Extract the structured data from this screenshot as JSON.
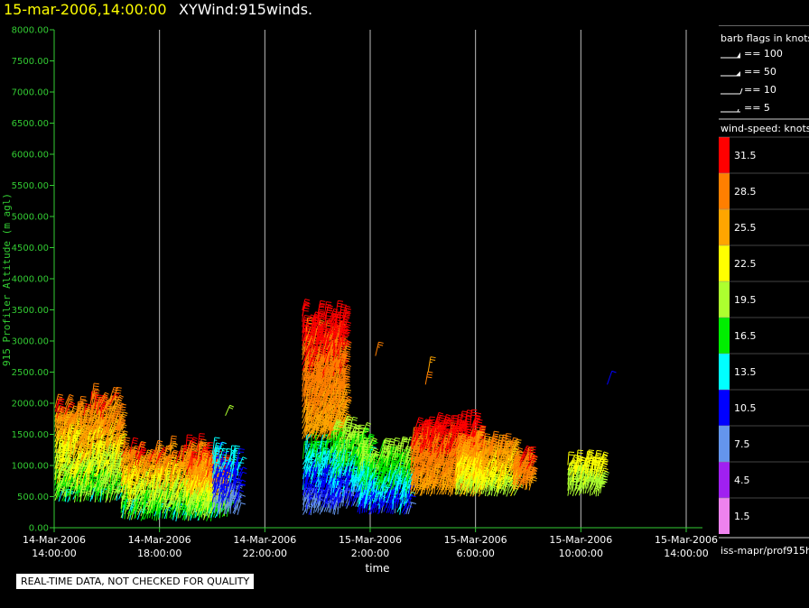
{
  "header": {
    "time": "15-mar-2006,14:00:00",
    "product": "XYWind:915winds."
  },
  "footer": {
    "source": "iss-mapr/prof915h",
    "qc_note": "REAL-TIME DATA, NOT CHECKED FOR QUALITY"
  },
  "legend": {
    "barb_title": "barb flags in knots",
    "barbs": [
      {
        "label": "== 100",
        "icon": "pennant-barb-icon"
      },
      {
        "label": "== 50",
        "icon": "flag-barb-icon"
      },
      {
        "label": "== 10",
        "icon": "full-barb-icon"
      },
      {
        "label": "== 5",
        "icon": "half-barb-icon"
      }
    ],
    "speed_title": "wind-speed: knots",
    "speed_bins": [
      {
        "label": "31.5",
        "color": "#ff0000"
      },
      {
        "label": "28.5",
        "color": "#ff7f00"
      },
      {
        "label": "25.5",
        "color": "#ffa500"
      },
      {
        "label": "22.5",
        "color": "#ffff00"
      },
      {
        "label": "19.5",
        "color": "#adff2f"
      },
      {
        "label": "16.5",
        "color": "#00ee00"
      },
      {
        "label": "13.5",
        "color": "#00ffff"
      },
      {
        "label": "10.5",
        "color": "#0000ff"
      },
      {
        "label": "7.5",
        "color": "#6495ed"
      },
      {
        "label": "4.5",
        "color": "#a020f0"
      },
      {
        "label": "1.5",
        "color": "#ee82ee"
      }
    ]
  },
  "chart_data": {
    "type": "wind-barb-time-height",
    "xlabel": "time",
    "ylabel": "915 Profiler Altitude (m agl)",
    "ylim": [
      0,
      8000
    ],
    "yticks": [
      "0.00",
      "500.00",
      "1000.00",
      "1500.00",
      "2000.00",
      "2500.00",
      "3000.00",
      "3500.00",
      "4000.00",
      "4500.00",
      "5000.00",
      "5500.00",
      "6000.00",
      "6500.00",
      "7000.00",
      "7500.00",
      "8000.00"
    ],
    "xlim_hours_from_start": [
      0,
      24
    ],
    "xticks": [
      {
        "date": "14-Mar-2006",
        "time": "14:00:00"
      },
      {
        "date": "14-Mar-2006",
        "time": "18:00:00"
      },
      {
        "date": "14-Mar-2006",
        "time": "22:00:00"
      },
      {
        "date": "15-Mar-2006",
        "time": "2:00:00"
      },
      {
        "date": "15-Mar-2006",
        "time": "6:00:00"
      },
      {
        "date": "15-Mar-2006",
        "time": "10:00:00"
      },
      {
        "date": "15-Mar-2006",
        "time": "14:00:00"
      }
    ],
    "grid": "vertical lines at each x tick",
    "clusters": [
      {
        "t_start": 0.0,
        "t_end": 2.5,
        "alt_min": 400,
        "alt_max": 2150,
        "speed_low": 14,
        "speed_high": 30
      },
      {
        "t_start": 2.5,
        "t_end": 6.0,
        "alt_min": 100,
        "alt_max": 1300,
        "speed_low": 12,
        "speed_high": 30
      },
      {
        "t_start": 5.0,
        "t_end": 6.6,
        "alt_min": 150,
        "alt_max": 1100,
        "speed_low": 14,
        "speed_high": 31
      },
      {
        "t_start": 6.0,
        "t_end": 7.0,
        "alt_min": 200,
        "alt_max": 1300,
        "speed_low": 6,
        "speed_high": 14
      },
      {
        "t_start": 9.4,
        "t_end": 10.8,
        "alt_min": 200,
        "alt_max": 1400,
        "speed_low": 6,
        "speed_high": 16
      },
      {
        "t_start": 9.4,
        "t_end": 11.0,
        "alt_min": 1400,
        "alt_max": 3600,
        "speed_low": 24,
        "speed_high": 32
      },
      {
        "t_start": 10.5,
        "t_end": 12.0,
        "alt_min": 300,
        "alt_max": 1600,
        "speed_low": 6,
        "speed_high": 20
      },
      {
        "t_start": 11.5,
        "t_end": 13.5,
        "alt_min": 200,
        "alt_max": 1300,
        "speed_low": 8,
        "speed_high": 20
      },
      {
        "t_start": 13.5,
        "t_end": 16.2,
        "alt_min": 500,
        "alt_max": 1700,
        "speed_low": 24,
        "speed_high": 32
      },
      {
        "t_start": 15.2,
        "t_end": 17.5,
        "alt_min": 500,
        "alt_max": 1400,
        "speed_low": 18,
        "speed_high": 28
      },
      {
        "t_start": 17.4,
        "t_end": 18.1,
        "alt_min": 600,
        "alt_max": 1200,
        "speed_low": 26,
        "speed_high": 31
      },
      {
        "t_start": 19.5,
        "t_end": 20.8,
        "alt_min": 500,
        "alt_max": 1100,
        "speed_low": 18,
        "speed_high": 23
      }
    ],
    "isolated": [
      {
        "t": 6.5,
        "alt": 1800,
        "speed": 18
      },
      {
        "t": 12.2,
        "alt": 2760,
        "speed": 27
      },
      {
        "t": 14.1,
        "alt": 2300,
        "speed": 28
      },
      {
        "t": 14.2,
        "alt": 2500,
        "speed": 26
      },
      {
        "t": 21.0,
        "alt": 2300,
        "speed": 10
      }
    ]
  }
}
